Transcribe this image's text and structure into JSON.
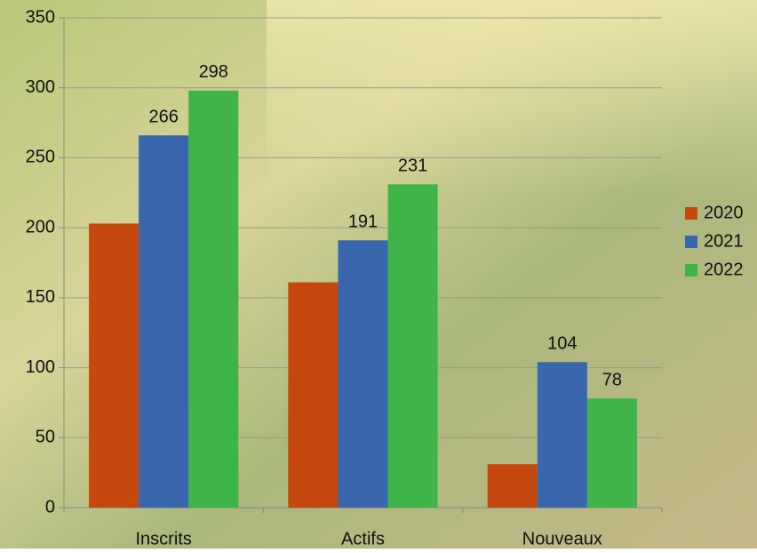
{
  "chart_data": {
    "type": "bar",
    "categories": [
      "Inscrits",
      "Actifs",
      "Nouveaux"
    ],
    "series": [
      {
        "name": "2020",
        "color": "#c5480e",
        "values": [
          203,
          161,
          31
        ],
        "show_labels": false
      },
      {
        "name": "2021",
        "color": "#3a66ad",
        "values": [
          266,
          191,
          104
        ],
        "show_labels": true
      },
      {
        "name": "2022",
        "color": "#3fb449",
        "values": [
          298,
          231,
          78
        ],
        "show_labels": true
      }
    ],
    "ylim": [
      0,
      350
    ],
    "yticks": [
      0,
      50,
      100,
      150,
      200,
      250,
      300,
      350
    ],
    "grid": true,
    "legend": "right"
  }
}
